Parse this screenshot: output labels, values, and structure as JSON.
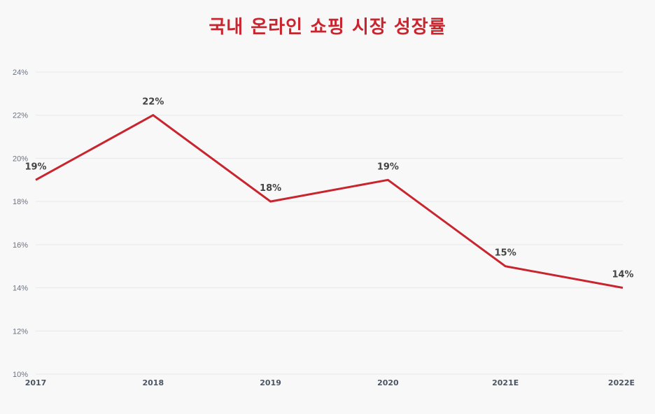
{
  "chart_data": {
    "type": "line",
    "title": "국내 온라인 쇼핑 시장 성장률",
    "xlabel": "",
    "ylabel": "",
    "categories": [
      "2017",
      "2018",
      "2019",
      "2020",
      "2021E",
      "2022E"
    ],
    "series": [
      {
        "name": "성장률",
        "values": [
          19,
          22,
          18,
          19,
          15,
          14
        ],
        "color": "#c8252e"
      }
    ],
    "data_labels": [
      "19%",
      "22%",
      "18%",
      "19%",
      "15%",
      "14%"
    ],
    "ylim": [
      10,
      24
    ],
    "yticks": [
      "10%",
      "12%",
      "14%",
      "16%",
      "18%",
      "20%",
      "22%",
      "24%"
    ],
    "grid": true,
    "legend": "none"
  },
  "colors": {
    "line": "#c8252e",
    "title": "#c8252e",
    "grid": "#e5e7eb",
    "background": "#f8f8f9"
  }
}
